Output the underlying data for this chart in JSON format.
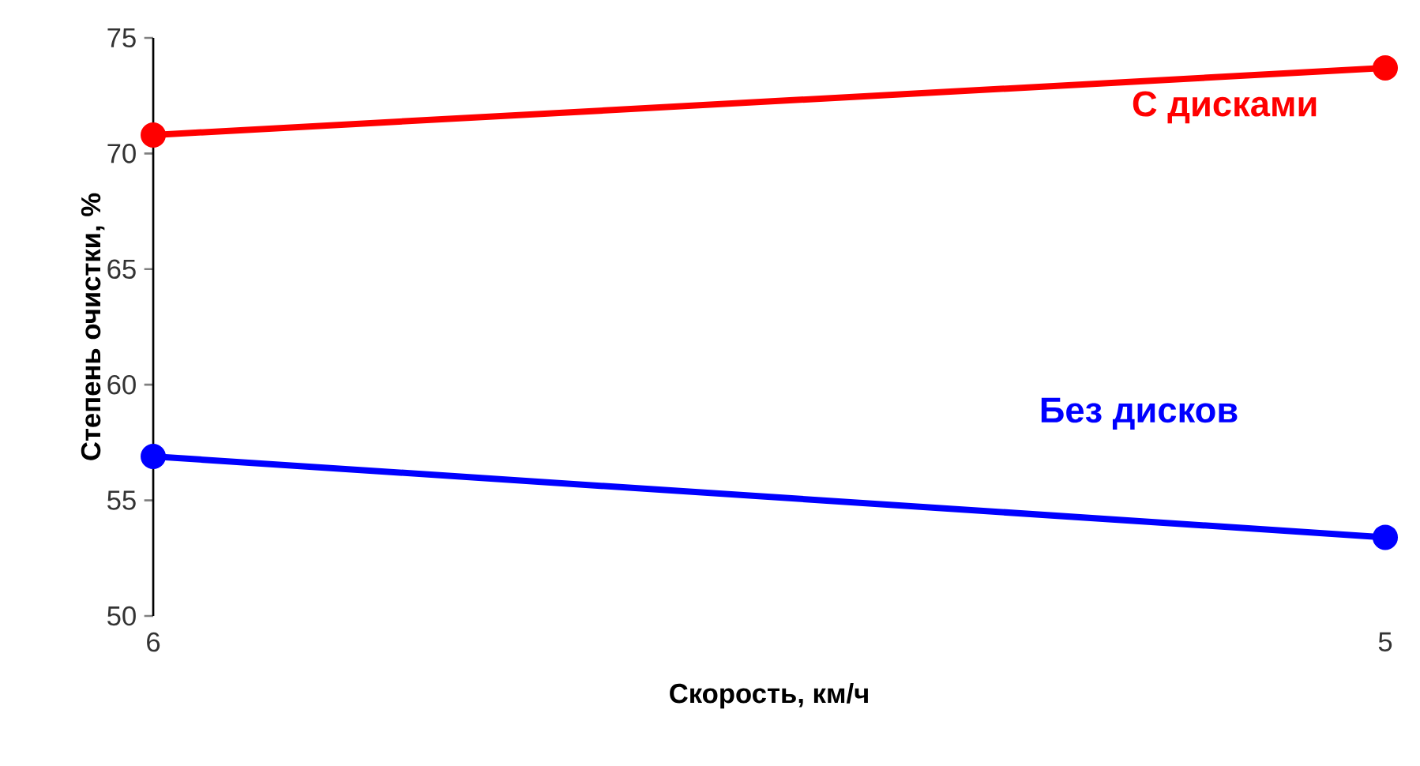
{
  "chart_data": {
    "type": "line",
    "xlabel": "Скорость, км/ч",
    "ylabel": "Степень очистки, %",
    "categories": [
      "6",
      "5"
    ],
    "series": [
      {
        "name": "С дисками",
        "color": "#ff0000",
        "values": [
          70.8,
          73.7
        ]
      },
      {
        "name": "Без дисков",
        "color": "#0000ff",
        "values": [
          56.9,
          53.4
        ]
      }
    ],
    "ylim": [
      50,
      75
    ],
    "yticks": [
      50,
      55,
      60,
      65,
      70,
      75
    ],
    "marker": "circle",
    "line_style": "solid",
    "grid": false,
    "legend": false
  }
}
